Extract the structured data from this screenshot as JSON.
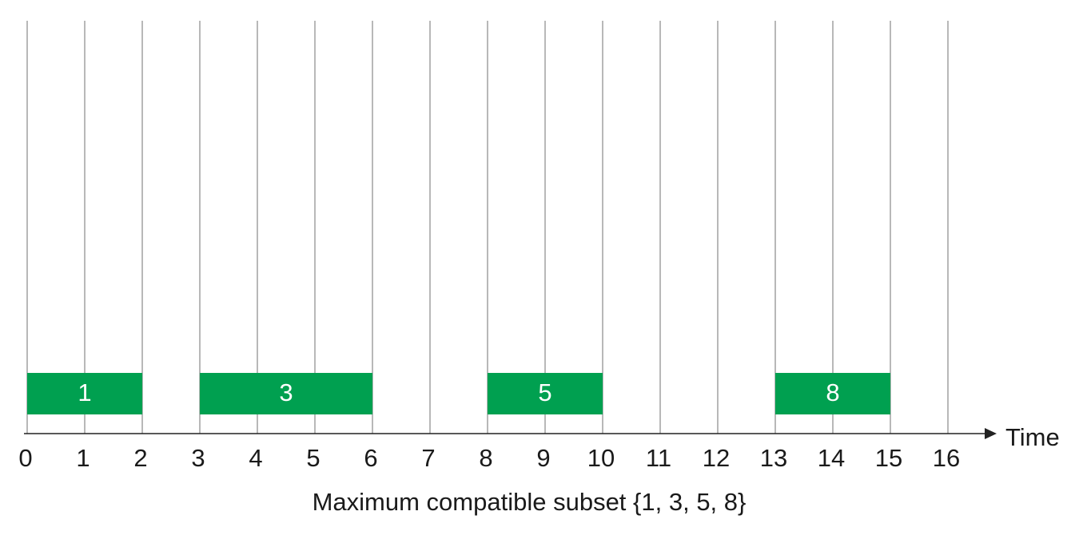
{
  "chart_data": {
    "type": "bar",
    "xlabel": "Time",
    "caption": "Maximum compatible subset {1, 3, 5, 8}",
    "x_ticks": [
      0,
      1,
      2,
      3,
      4,
      5,
      6,
      7,
      8,
      9,
      10,
      11,
      12,
      13,
      14,
      15,
      16
    ],
    "xlim": [
      0,
      16
    ],
    "grid": true,
    "bar_color": "#00a050",
    "bar_label_color": "#ffffff",
    "intervals": [
      {
        "label": "1",
        "start": 0,
        "end": 2
      },
      {
        "label": "3",
        "start": 3,
        "end": 6
      },
      {
        "label": "5",
        "start": 8,
        "end": 10
      },
      {
        "label": "8",
        "start": 13,
        "end": 15
      }
    ]
  }
}
